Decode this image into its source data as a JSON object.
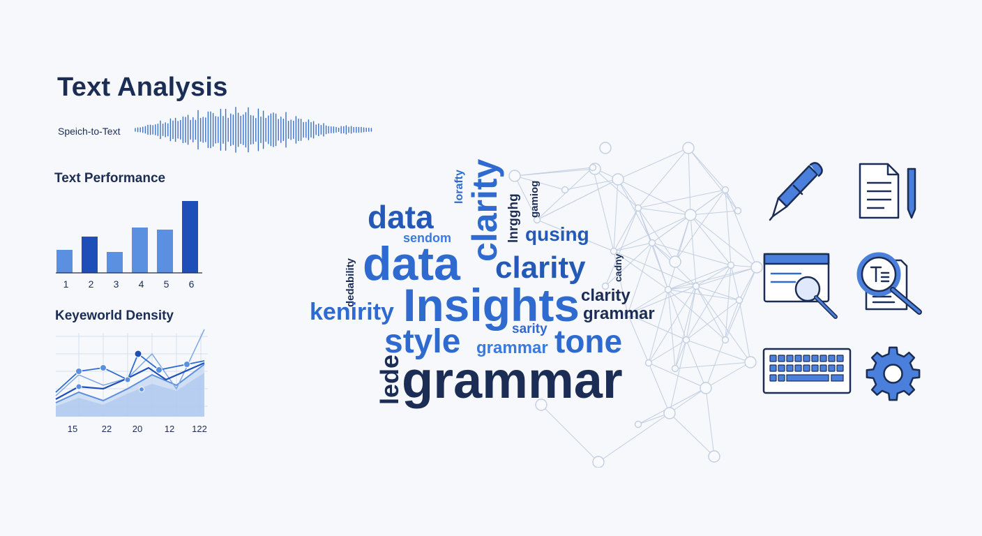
{
  "header": {
    "title": "Text Analysis",
    "subtitle": "Speich-to-Text"
  },
  "performance": {
    "title": "Text Performance",
    "chart_data": {
      "type": "bar",
      "categories": [
        "1",
        "2",
        "3",
        "4",
        "5",
        "6"
      ],
      "values": [
        33,
        52,
        30,
        65,
        62,
        103
      ],
      "colors": [
        "#5b8fe0",
        "#1e4fb8",
        "#5b8fe0",
        "#5b8fe0",
        "#5b8fe0",
        "#1e4fb8"
      ]
    }
  },
  "density": {
    "title": "Keyeworld Density",
    "ticks": [
      "15",
      "22",
      "20",
      "12",
      "122"
    ]
  },
  "word_cloud": {
    "words": [
      {
        "text": "data",
        "color": "#2459b8"
      },
      {
        "text": "clarity",
        "color": "#2f6ad0"
      },
      {
        "text": "lorafty",
        "color": "#2f6ad0"
      },
      {
        "text": "lnrgghg",
        "color": "#1b2d55"
      },
      {
        "text": "gamiog",
        "color": "#1b2d55"
      },
      {
        "text": "sendom",
        "color": "#3a7ae0"
      },
      {
        "text": "qusing",
        "color": "#2459b8"
      },
      {
        "text": "dedability",
        "color": "#1b2d55"
      },
      {
        "text": "data",
        "color": "#2f6ad0"
      },
      {
        "text": "clarity",
        "color": "#2459b8"
      },
      {
        "text": "cadny",
        "color": "#1b2d55"
      },
      {
        "text": "kenirity",
        "color": "#2f6ad0"
      },
      {
        "text": "Insights",
        "color": "#2f6ad0"
      },
      {
        "text": "clarity",
        "color": "#1b2d55"
      },
      {
        "text": "grammar",
        "color": "#1b2d55"
      },
      {
        "text": "sarity",
        "color": "#2f6ad0"
      },
      {
        "text": "style",
        "color": "#2f6ad0"
      },
      {
        "text": "grammar",
        "color": "#3a7ae0"
      },
      {
        "text": "tone",
        "color": "#2f6ad0"
      },
      {
        "text": "lede",
        "color": "#1b2d55"
      },
      {
        "text": "grammar",
        "color": "#1b2d55"
      }
    ]
  },
  "tools": [
    {
      "icon": "pen-icon"
    },
    {
      "icon": "document-edit-icon"
    },
    {
      "icon": "browser-search-icon"
    },
    {
      "icon": "text-magnifier-icon"
    },
    {
      "icon": "keyboard-icon"
    },
    {
      "icon": "gear-icon"
    }
  ],
  "theme": {
    "navy": "#1b2d55",
    "blue": "#2f6ad0",
    "light_blue": "#5b8fe0"
  }
}
